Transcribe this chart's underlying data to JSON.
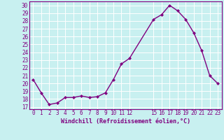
{
  "x": [
    0,
    1,
    2,
    3,
    4,
    5,
    6,
    7,
    8,
    9,
    10,
    11,
    12,
    15,
    16,
    17,
    18,
    19,
    20,
    21,
    22,
    23
  ],
  "y": [
    20.5,
    18.8,
    17.3,
    17.5,
    18.2,
    18.2,
    18.4,
    18.2,
    18.3,
    18.8,
    20.5,
    22.5,
    23.2,
    28.2,
    28.8,
    30.0,
    29.3,
    28.2,
    26.5,
    24.2,
    21.0,
    20.0
  ],
  "line_color": "#800080",
  "marker": "D",
  "marker_size": 2.0,
  "bg_color": "#c8f0f0",
  "grid_color": "#ffffff",
  "xlabel": "Windchill (Refroidissement éolien,°C)",
  "xlabel_fontsize": 6.0,
  "xticks": [
    0,
    1,
    2,
    3,
    4,
    5,
    6,
    7,
    8,
    9,
    10,
    11,
    12,
    15,
    16,
    17,
    18,
    19,
    20,
    21,
    22,
    23
  ],
  "yticks": [
    17,
    18,
    19,
    20,
    21,
    22,
    23,
    24,
    25,
    26,
    27,
    28,
    29,
    30
  ],
  "ylim": [
    16.7,
    30.5
  ],
  "xlim": [
    -0.5,
    23.5
  ],
  "tick_fontsize": 5.5,
  "line_width": 1.0
}
